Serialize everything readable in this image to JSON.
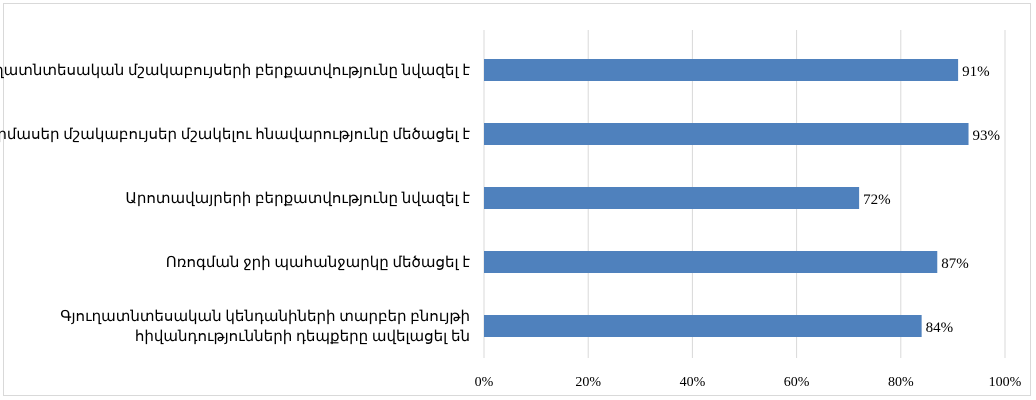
{
  "chart_data": {
    "type": "bar",
    "orientation": "horizontal",
    "categories": [
      [
        "Գյուղատնտեսական մշակաբույսերի բերքատվությունը նվազել է"
      ],
      [
        "Ջերմասեր մշակաբույսեր մշակելու հնավարությունը մեծացել է"
      ],
      [
        "Արոտավայրերի բերքատվությունը նվազել է"
      ],
      [
        "Ոռոգման ջրի պահանջարկը մեծացել է"
      ],
      [
        "Գյուղատնտեսական կենդանիների տարբեր բնույթի",
        "հիվանդությունների դեպքերը ավելացել են"
      ]
    ],
    "values": [
      91,
      93,
      72,
      87,
      84
    ],
    "value_labels": [
      "91%",
      "93%",
      "72%",
      "87%",
      "84%"
    ],
    "xlim": [
      0,
      100
    ],
    "x_ticks": [
      "0%",
      "20%",
      "40%",
      "60%",
      "80%",
      "100%"
    ],
    "grid": true,
    "legend": "none",
    "bar_color": "#4f81bd",
    "grid_color": "#d9d9d9"
  }
}
